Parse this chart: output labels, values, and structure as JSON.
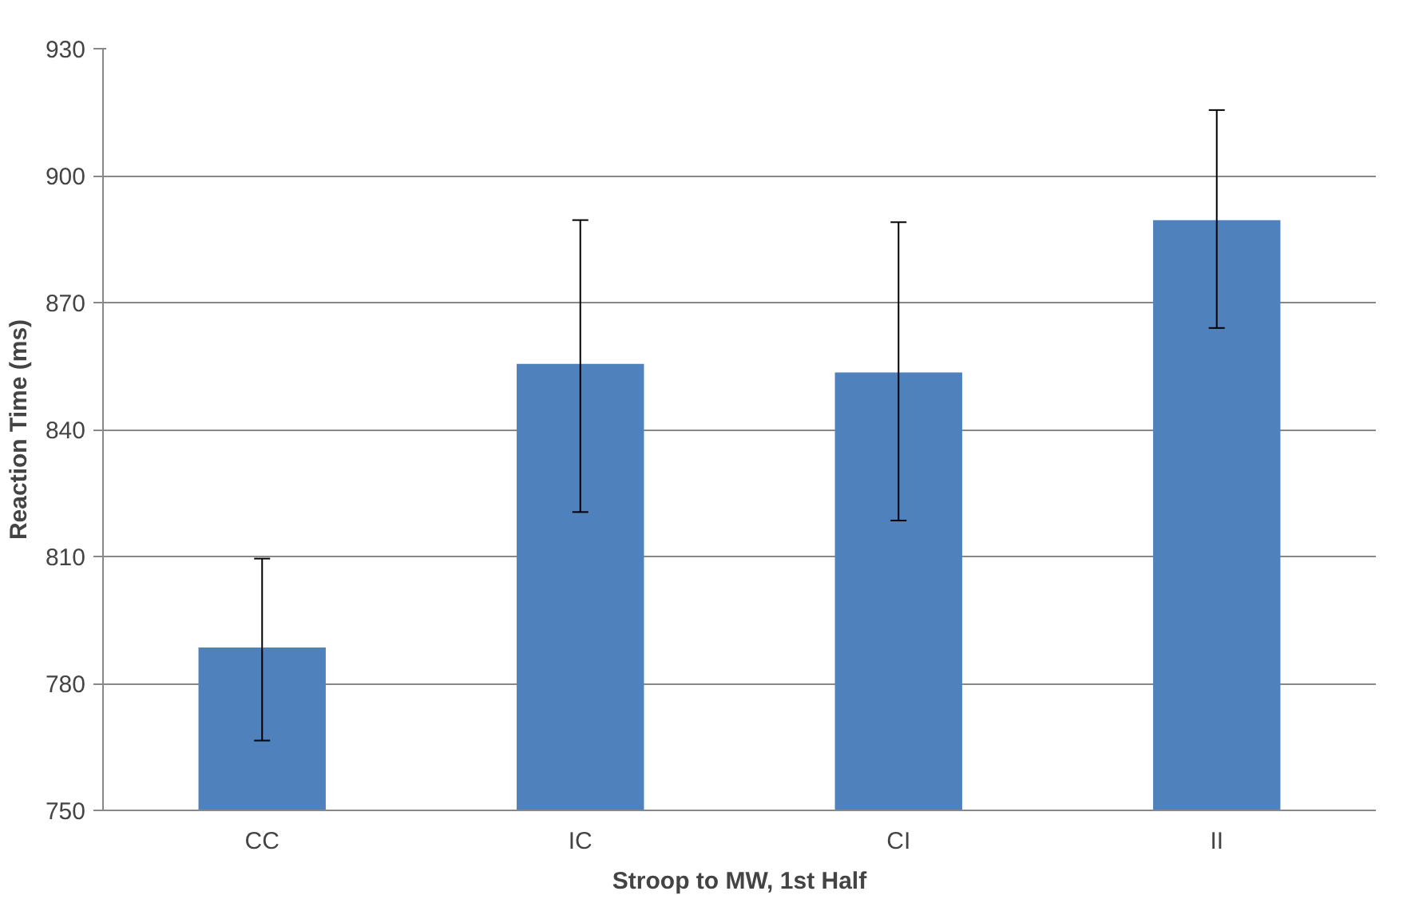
{
  "chart_data": {
    "type": "bar",
    "xlabel": "Stroop to MW, 1st Half",
    "ylabel": "Reaction Time (ms)",
    "categories": [
      "CC",
      "IC",
      "CI",
      "II"
    ],
    "values": [
      788.5,
      855.5,
      853.5,
      889.5
    ],
    "color": "#4f81bd",
    "errors": [
      [
        766.5,
        809.5
      ],
      [
        820.5,
        889.5
      ],
      [
        818.5,
        889
      ],
      [
        864,
        915.5
      ]
    ],
    "ylim": [
      750,
      930
    ],
    "yticks": [
      750,
      780,
      810,
      840,
      870,
      900,
      930
    ],
    "grid": "y"
  }
}
